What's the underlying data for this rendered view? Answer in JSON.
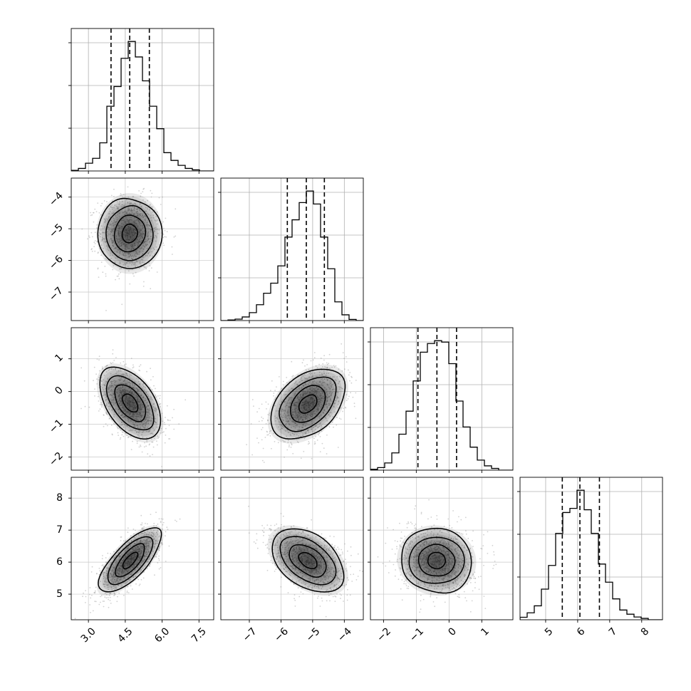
{
  "chart_data": {
    "type": "corner",
    "parameters": [
      {
        "ticks": [
          3.0,
          4.5,
          6.0,
          7.5
        ],
        "tick_labels": [
          "3.0",
          "4.5",
          "6.0",
          "7.5"
        ],
        "range": [
          2.3,
          8.1
        ],
        "quantiles": [
          3.92,
          4.68,
          5.48
        ],
        "hist_edges": [
          2.3,
          2.59,
          2.88,
          3.17,
          3.46,
          3.75,
          4.04,
          4.33,
          4.62,
          4.91,
          5.2,
          5.49,
          5.78,
          6.07,
          6.36,
          6.65,
          6.94,
          7.23,
          7.52,
          7.81,
          8.1
        ],
        "hist_counts": [
          0.004,
          0.018,
          0.055,
          0.09,
          0.2,
          0.46,
          0.6,
          0.8,
          0.92,
          0.81,
          0.64,
          0.46,
          0.3,
          0.13,
          0.075,
          0.04,
          0.018,
          0.008,
          0.0,
          0.0
        ]
      },
      {
        "ticks": [
          -7,
          -6,
          -5,
          -4
        ],
        "tick_labels": [
          "−7",
          "−6",
          "−5",
          "−4"
        ],
        "range": [
          -7.9,
          -3.4
        ],
        "quantiles": [
          -5.8,
          -5.2,
          -4.63
        ],
        "hist_edges": [
          -7.9,
          -7.675,
          -7.45,
          -7.225,
          -7.0,
          -6.775,
          -6.55,
          -6.325,
          -6.1,
          -5.875,
          -5.65,
          -5.425,
          -5.2,
          -4.975,
          -4.75,
          -4.525,
          -4.3,
          -4.075,
          -3.85,
          -3.625,
          -3.4
        ],
        "hist_counts": [
          0.0,
          0.004,
          0.01,
          0.025,
          0.055,
          0.11,
          0.19,
          0.26,
          0.38,
          0.58,
          0.7,
          0.82,
          0.9,
          0.81,
          0.58,
          0.36,
          0.13,
          0.04,
          0.008,
          0.0
        ]
      },
      {
        "ticks": [
          -2,
          -1,
          0,
          1
        ],
        "tick_labels": [
          "−2",
          "−1",
          "0",
          "1"
        ],
        "range": [
          -2.4,
          1.95
        ],
        "quantiles": [
          -0.95,
          -0.37,
          0.23
        ],
        "hist_edges": [
          -2.4,
          -2.1825,
          -1.965,
          -1.7475,
          -1.53,
          -1.3125,
          -1.095,
          -0.8775,
          -0.66,
          -0.4425,
          -0.225,
          -0.0075,
          0.21,
          0.4275,
          0.645,
          0.8625,
          1.08,
          1.2975,
          1.515,
          1.7325,
          1.95
        ],
        "hist_counts": [
          0.006,
          0.018,
          0.05,
          0.12,
          0.25,
          0.41,
          0.62,
          0.82,
          0.88,
          0.9,
          0.89,
          0.74,
          0.48,
          0.3,
          0.16,
          0.07,
          0.03,
          0.012,
          0.0,
          0.0
        ]
      },
      {
        "ticks": [
          5,
          6,
          7,
          8
        ],
        "tick_labels": [
          "5",
          "6",
          "7",
          "8"
        ],
        "range": [
          4.2,
          8.65
        ],
        "quantiles": [
          5.52,
          6.07,
          6.68
        ],
        "hist_edges": [
          4.2,
          4.4225,
          4.645,
          4.8675,
          5.09,
          5.3125,
          5.535,
          5.7575,
          5.98,
          6.2025,
          6.425,
          6.6475,
          6.87,
          7.0925,
          7.315,
          7.5375,
          7.76,
          7.9825,
          8.205,
          8.4275,
          8.65
        ],
        "hist_counts": [
          0.018,
          0.05,
          0.1,
          0.22,
          0.39,
          0.62,
          0.77,
          0.8,
          0.93,
          0.79,
          0.62,
          0.4,
          0.27,
          0.15,
          0.07,
          0.04,
          0.02,
          0.01,
          0.0,
          0.0
        ]
      }
    ],
    "pairs": [
      {
        "x": 0,
        "y": 1,
        "mean": [
          4.68,
          -5.15
        ],
        "sd": [
          0.62,
          0.58
        ],
        "corr": 0.0
      },
      {
        "x": 0,
        "y": 2,
        "mean": [
          4.7,
          -0.35
        ],
        "sd": [
          0.62,
          0.55
        ],
        "corr": -0.48
      },
      {
        "x": 1,
        "y": 2,
        "mean": [
          -5.15,
          -0.38
        ],
        "sd": [
          0.58,
          0.55
        ],
        "corr": 0.42
      },
      {
        "x": 0,
        "y": 3,
        "mean": [
          4.7,
          6.05
        ],
        "sd": [
          0.62,
          0.5
        ],
        "corr": 0.72
      },
      {
        "x": 1,
        "y": 3,
        "mean": [
          -5.15,
          6.05
        ],
        "sd": [
          0.58,
          0.5
        ],
        "corr": -0.45
      },
      {
        "x": 2,
        "y": 3,
        "mean": [
          -0.38,
          6.05
        ],
        "sd": [
          0.55,
          0.5
        ],
        "corr": -0.05
      }
    ],
    "contour_levels_sigma": [
      0.5,
      1.0,
      1.5,
      2.0
    ],
    "grid": true,
    "histogram_style": "step",
    "quantile_line_style": "dashed",
    "scatter_color": "#9a9a9a",
    "density_color": "#000000"
  }
}
